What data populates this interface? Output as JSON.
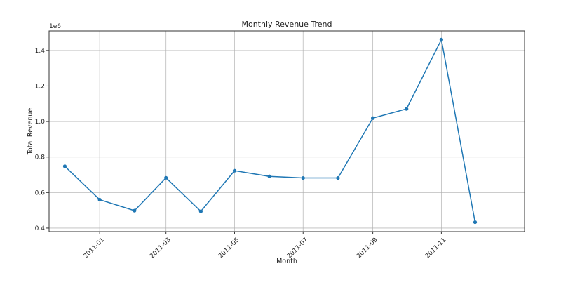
{
  "chart_data": {
    "type": "line",
    "title": "Monthly Revenue Trend",
    "xlabel": "Month",
    "ylabel": "Total Revenue",
    "y_offset_label": "1e6",
    "y_scale_factor": 1000000,
    "grid": true,
    "line_color": "#1f77b4",
    "marker": "circle",
    "x": [
      "2010-12",
      "2011-01",
      "2011-02",
      "2011-03",
      "2011-04",
      "2011-05",
      "2011-06",
      "2011-07",
      "2011-08",
      "2011-09",
      "2011-10",
      "2011-11",
      "2011-12"
    ],
    "y": [
      748000,
      560000,
      498000,
      683000,
      494000,
      723000,
      691000,
      682000,
      682000,
      1019000,
      1071000,
      1461000,
      433000
    ],
    "xlim": [
      "2010-11-17",
      "2012-01-14"
    ],
    "ylim": [
      380000,
      1510000
    ],
    "xticks": [
      "2011-01",
      "2011-03",
      "2011-05",
      "2011-07",
      "2011-09",
      "2011-11"
    ],
    "yticks": [
      0.4,
      0.6,
      0.8,
      1.0,
      1.2,
      1.4
    ],
    "ytick_labels": [
      "0.4",
      "0.6",
      "0.8",
      "1.0",
      "1.2",
      "1.4"
    ],
    "xtick_rotation": 45
  }
}
